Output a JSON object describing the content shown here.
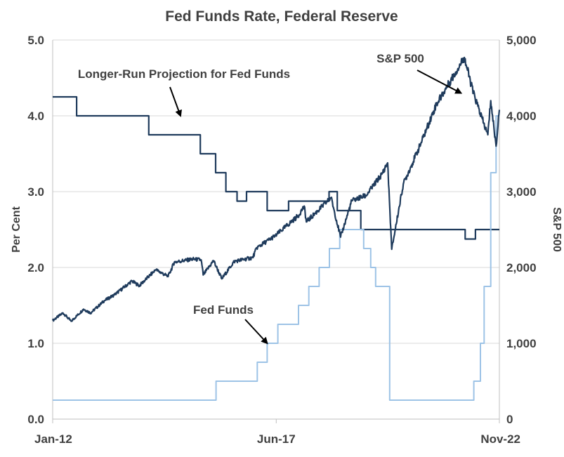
{
  "chart_data": {
    "type": "line",
    "title": "Fed Funds Rate, Federal Reserve",
    "ylabel_left": "Per  Cent",
    "ylabel_right": "S&P  500",
    "ylim_left": [
      0,
      5
    ],
    "ylim_right": [
      0,
      5000
    ],
    "xlim": [
      2012.0,
      2022.83
    ],
    "x_ticks": [
      {
        "x": 2012.0,
        "label": "Jan-12"
      },
      {
        "x": 2017.42,
        "label": "Jun-17"
      },
      {
        "x": 2022.83,
        "label": "Nov-22"
      }
    ],
    "y_ticks_left": [
      "0.0",
      "1.0",
      "2.0",
      "3.0",
      "4.0",
      "5.0"
    ],
    "y_ticks_right": [
      "0",
      "1,000",
      "2,000",
      "3,000",
      "4,000",
      "5,000"
    ],
    "grid": true,
    "colors": {
      "projection": "#1f3b5c",
      "fed_funds": "#9dc3e6",
      "sp500": "#1f3b5c",
      "text": "#404040"
    },
    "series": [
      {
        "name": "Longer-Run Projection for Fed Funds",
        "axis": "left",
        "step": true,
        "points": [
          [
            2012.0,
            4.25
          ],
          [
            2012.58,
            4.0
          ],
          [
            2014.33,
            3.75
          ],
          [
            2015.58,
            3.5
          ],
          [
            2015.95,
            3.25
          ],
          [
            2016.2,
            3.0
          ],
          [
            2016.47,
            2.875
          ],
          [
            2016.7,
            3.0
          ],
          [
            2017.2,
            2.75
          ],
          [
            2017.72,
            2.875
          ],
          [
            2018.7,
            3.0
          ],
          [
            2018.9,
            2.75
          ],
          [
            2019.47,
            2.5
          ],
          [
            2022.0,
            2.375
          ],
          [
            2022.25,
            2.5
          ],
          [
            2022.83,
            2.5
          ]
        ]
      },
      {
        "name": "Fed Funds",
        "axis": "left",
        "step": true,
        "points": [
          [
            2012.0,
            0.25
          ],
          [
            2015.96,
            0.5
          ],
          [
            2016.96,
            0.75
          ],
          [
            2017.2,
            1.0
          ],
          [
            2017.46,
            1.25
          ],
          [
            2017.96,
            1.5
          ],
          [
            2018.21,
            1.75
          ],
          [
            2018.46,
            2.0
          ],
          [
            2018.71,
            2.25
          ],
          [
            2018.96,
            2.5
          ],
          [
            2019.54,
            2.25
          ],
          [
            2019.71,
            2.0
          ],
          [
            2019.83,
            1.75
          ],
          [
            2020.17,
            0.25
          ],
          [
            2022.21,
            0.5
          ],
          [
            2022.37,
            1.0
          ],
          [
            2022.46,
            1.75
          ],
          [
            2022.62,
            3.25
          ],
          [
            2022.75,
            4.0
          ],
          [
            2022.83,
            4.0
          ]
        ]
      },
      {
        "name": "S&P 500",
        "axis": "right",
        "step": false,
        "points": [
          [
            2012.0,
            1300
          ],
          [
            2012.25,
            1400
          ],
          [
            2012.45,
            1290
          ],
          [
            2012.75,
            1450
          ],
          [
            2012.92,
            1400
          ],
          [
            2013.25,
            1560
          ],
          [
            2013.5,
            1640
          ],
          [
            2013.92,
            1820
          ],
          [
            2014.1,
            1760
          ],
          [
            2014.5,
            1970
          ],
          [
            2014.8,
            1880
          ],
          [
            2014.95,
            2070
          ],
          [
            2015.4,
            2110
          ],
          [
            2015.6,
            2100
          ],
          [
            2015.65,
            1900
          ],
          [
            2015.9,
            2090
          ],
          [
            2016.1,
            1850
          ],
          [
            2016.4,
            2080
          ],
          [
            2016.85,
            2130
          ],
          [
            2016.95,
            2260
          ],
          [
            2017.4,
            2420
          ],
          [
            2017.95,
            2680
          ],
          [
            2018.1,
            2810
          ],
          [
            2018.15,
            2600
          ],
          [
            2018.75,
            2920
          ],
          [
            2018.98,
            2400
          ],
          [
            2019.25,
            2880
          ],
          [
            2019.6,
            2950
          ],
          [
            2019.98,
            3230
          ],
          [
            2020.12,
            3380
          ],
          [
            2020.22,
            2240
          ],
          [
            2020.5,
            3100
          ],
          [
            2020.9,
            3600
          ],
          [
            2021.3,
            4150
          ],
          [
            2021.6,
            4420
          ],
          [
            2021.98,
            4770
          ],
          [
            2022.2,
            4300
          ],
          [
            2022.45,
            3900
          ],
          [
            2022.55,
            3750
          ],
          [
            2022.62,
            4200
          ],
          [
            2022.75,
            3600
          ],
          [
            2022.83,
            4080
          ]
        ]
      }
    ],
    "annotations": [
      {
        "text": "Longer-Run Projection for Fed Funds",
        "arrow_to": [
          2015.1,
          4.0
        ]
      },
      {
        "text": "S&P 500",
        "arrow_to": [
          2021.9,
          4.3
        ]
      },
      {
        "text": "Fed Funds",
        "arrow_to": [
          2017.2,
          1.0
        ]
      }
    ]
  }
}
